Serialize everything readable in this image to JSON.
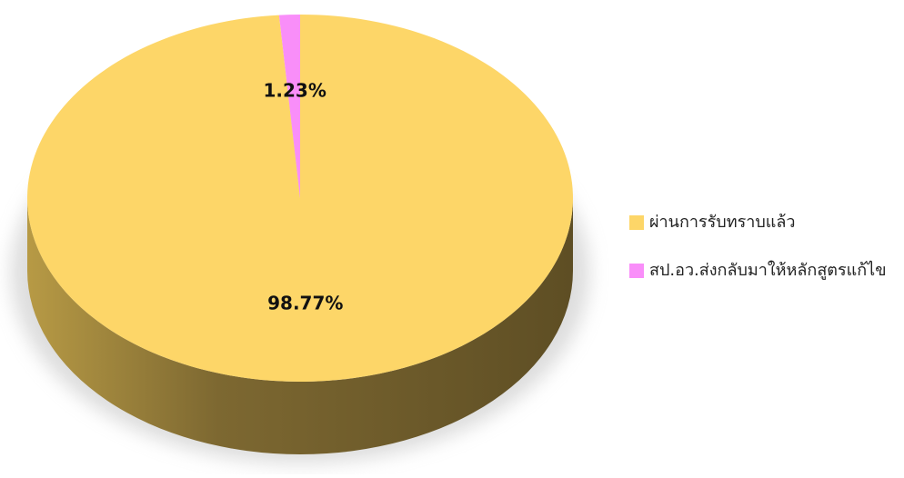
{
  "chart_data": {
    "type": "pie",
    "categories": [
      "ผ่านการรับทราบแล้ว",
      "สป.อว.ส่งกลับมาให้หลักสูตรแก้ไข"
    ],
    "values": [
      98.77,
      1.23
    ],
    "value_labels": [
      "98.77%",
      "1.23%"
    ],
    "colors": [
      "#fdd668",
      "#f98ef9"
    ],
    "legend": "right"
  }
}
